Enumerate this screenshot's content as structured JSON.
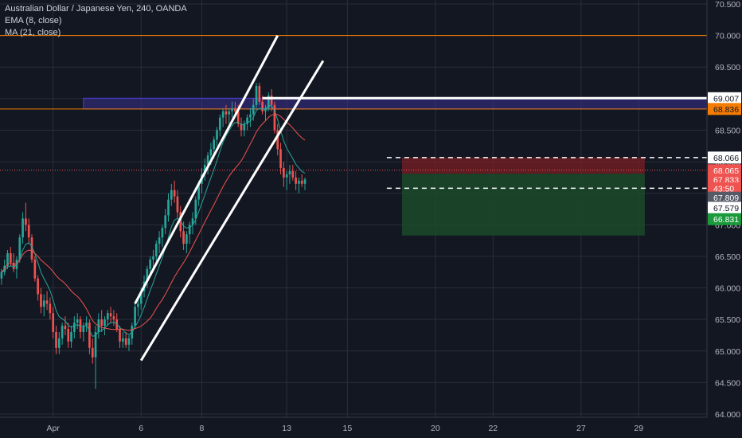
{
  "legend": {
    "title": "Australian Dollar / Japanese Yen, 240, OANDA",
    "ema": "EMA (8, close)",
    "ma": "MA (21, close)"
  },
  "colors": {
    "background": "#131722",
    "grid": "#2a2e39",
    "up": "#26a69a",
    "down": "#ef5350",
    "ema": "#26a69a",
    "ma": "#ef5350",
    "level_line": "#f57c00",
    "zone_fill": "#3b2f8f",
    "zone_border": "#4a3fd6",
    "trend_line": "#ffffff",
    "stop_zone": "#7a1f23",
    "target_zone": "#1c4a2a",
    "label_white": "#ffffff",
    "label_red": "#ef5350",
    "label_grey": "#555a66",
    "label_green": "#1b9a3c",
    "label_orange": "#f57c00"
  },
  "chart_data": {
    "type": "candlestick",
    "symbol": "Australian Dollar / Japanese Yen",
    "interval": "240",
    "source": "OANDA",
    "y_axis": {
      "ticks": [
        "70.500",
        "70.000",
        "69.500",
        "69.000",
        "68.500",
        "68.000",
        "67.500",
        "67.000",
        "66.500",
        "66.000",
        "65.500",
        "65.000",
        "64.500",
        "64.000"
      ],
      "range": [
        63.95,
        70.55
      ]
    },
    "x_axis": {
      "ticks": [
        {
          "label": "Apr",
          "index": 17
        },
        {
          "label": "6",
          "index": 46
        },
        {
          "label": "8",
          "index": 66
        },
        {
          "label": "13",
          "index": 94
        },
        {
          "label": "15",
          "index": 114
        },
        {
          "label": "20",
          "index": 143
        },
        {
          "label": "22",
          "index": 162
        },
        {
          "label": "27",
          "index": 191
        },
        {
          "label": "29",
          "index": 210
        }
      ],
      "bar_count_visible": 233
    },
    "candles": [
      [
        66.15,
        66.3,
        66.05,
        66.25
      ],
      [
        66.25,
        66.45,
        66.2,
        66.35
      ],
      [
        66.35,
        66.6,
        66.3,
        66.55
      ],
      [
        66.55,
        66.65,
        66.35,
        66.4
      ],
      [
        66.4,
        66.55,
        66.25,
        66.3
      ],
      [
        66.3,
        66.5,
        66.15,
        66.45
      ],
      [
        66.45,
        66.85,
        66.4,
        66.8
      ],
      [
        66.8,
        67.2,
        66.7,
        67.1
      ],
      [
        67.1,
        67.35,
        66.9,
        67.0
      ],
      [
        67.0,
        67.1,
        66.7,
        66.8
      ],
      [
        66.8,
        66.85,
        66.4,
        66.45
      ],
      [
        66.45,
        66.5,
        66.1,
        66.15
      ],
      [
        66.15,
        66.2,
        65.8,
        65.9
      ],
      [
        65.9,
        66.0,
        65.6,
        65.7
      ],
      [
        65.7,
        65.9,
        65.55,
        65.8
      ],
      [
        65.8,
        65.95,
        65.65,
        65.75
      ],
      [
        65.75,
        65.85,
        65.5,
        65.6
      ],
      [
        65.6,
        65.7,
        65.2,
        65.3
      ],
      [
        65.3,
        65.4,
        64.95,
        65.05
      ],
      [
        65.05,
        65.3,
        64.95,
        65.2
      ],
      [
        65.2,
        65.45,
        65.1,
        65.4
      ],
      [
        65.4,
        65.55,
        65.25,
        65.35
      ],
      [
        65.35,
        65.45,
        65.05,
        65.15
      ],
      [
        65.15,
        65.4,
        65.05,
        65.3
      ],
      [
        65.3,
        65.55,
        65.2,
        65.45
      ],
      [
        65.45,
        65.6,
        65.35,
        65.5
      ],
      [
        65.5,
        65.55,
        65.2,
        65.3
      ],
      [
        65.3,
        65.45,
        65.15,
        65.4
      ],
      [
        65.4,
        65.55,
        65.3,
        65.45
      ],
      [
        65.45,
        65.5,
        64.95,
        65.05
      ],
      [
        65.05,
        65.2,
        64.8,
        64.9
      ],
      [
        64.9,
        65.4,
        64.4,
        65.3
      ],
      [
        65.3,
        65.6,
        65.2,
        65.5
      ],
      [
        65.5,
        65.65,
        65.3,
        65.4
      ],
      [
        65.4,
        65.55,
        65.25,
        65.5
      ],
      [
        65.5,
        65.65,
        65.4,
        65.6
      ],
      [
        65.6,
        65.7,
        65.45,
        65.55
      ],
      [
        65.55,
        65.65,
        65.4,
        65.5
      ],
      [
        65.5,
        65.6,
        65.3,
        65.35
      ],
      [
        65.35,
        65.4,
        65.05,
        65.15
      ],
      [
        65.15,
        65.3,
        65.05,
        65.2
      ],
      [
        65.2,
        65.3,
        65.05,
        65.1
      ],
      [
        65.1,
        65.25,
        65.0,
        65.2
      ],
      [
        65.2,
        65.45,
        65.1,
        65.4
      ],
      [
        65.4,
        65.75,
        65.35,
        65.7
      ],
      [
        65.7,
        65.85,
        65.55,
        65.75
      ],
      [
        65.75,
        66.0,
        65.65,
        65.95
      ],
      [
        65.95,
        66.2,
        65.85,
        66.1
      ],
      [
        66.1,
        66.35,
        66.0,
        66.3
      ],
      [
        66.3,
        66.5,
        66.2,
        66.45
      ],
      [
        66.45,
        66.6,
        66.3,
        66.5
      ],
      [
        66.5,
        66.75,
        66.4,
        66.7
      ],
      [
        66.7,
        66.9,
        66.55,
        66.8
      ],
      [
        66.8,
        67.0,
        66.65,
        66.95
      ],
      [
        66.95,
        67.25,
        66.85,
        67.15
      ],
      [
        67.15,
        67.5,
        67.05,
        67.4
      ],
      [
        67.4,
        67.65,
        67.3,
        67.55
      ],
      [
        67.55,
        67.7,
        67.35,
        67.45
      ],
      [
        67.45,
        67.55,
        67.1,
        67.2
      ],
      [
        67.2,
        67.3,
        66.8,
        66.9
      ],
      [
        66.9,
        67.05,
        66.6,
        66.7
      ],
      [
        66.7,
        66.9,
        66.55,
        66.85
      ],
      [
        66.85,
        67.05,
        66.7,
        67.0
      ],
      [
        67.0,
        67.2,
        66.85,
        67.1
      ],
      [
        67.1,
        67.45,
        67.0,
        67.4
      ],
      [
        67.4,
        67.7,
        67.3,
        67.65
      ],
      [
        67.65,
        67.9,
        67.5,
        67.8
      ],
      [
        67.8,
        68.05,
        67.7,
        67.95
      ],
      [
        67.95,
        68.15,
        67.8,
        68.1
      ],
      [
        68.1,
        68.3,
        67.95,
        68.2
      ],
      [
        68.2,
        68.4,
        68.05,
        68.35
      ],
      [
        68.35,
        68.55,
        68.25,
        68.5
      ],
      [
        68.5,
        68.75,
        68.4,
        68.7
      ],
      [
        68.7,
        68.85,
        68.55,
        68.8
      ],
      [
        68.8,
        68.9,
        68.6,
        68.75
      ],
      [
        68.75,
        68.85,
        68.6,
        68.8
      ],
      [
        68.8,
        68.95,
        68.7,
        68.85
      ],
      [
        68.85,
        68.95,
        68.7,
        68.8
      ],
      [
        68.8,
        68.9,
        68.55,
        68.6
      ],
      [
        68.6,
        68.7,
        68.4,
        68.5
      ],
      [
        68.5,
        68.65,
        68.4,
        68.6
      ],
      [
        68.6,
        68.75,
        68.5,
        68.7
      ],
      [
        68.7,
        68.85,
        68.55,
        68.75
      ],
      [
        68.75,
        69.0,
        68.65,
        68.9
      ],
      [
        68.9,
        69.25,
        68.85,
        69.2
      ],
      [
        69.2,
        69.25,
        68.9,
        68.95
      ],
      [
        68.95,
        69.05,
        68.75,
        68.8
      ],
      [
        68.8,
        68.9,
        68.65,
        68.85
      ],
      [
        68.85,
        69.1,
        68.8,
        69.05
      ],
      [
        69.05,
        69.15,
        68.8,
        68.9
      ],
      [
        68.9,
        68.95,
        68.45,
        68.5
      ],
      [
        68.5,
        68.6,
        68.1,
        68.2
      ],
      [
        68.2,
        68.3,
        67.8,
        67.9
      ],
      [
        67.9,
        68.0,
        67.6,
        67.75
      ],
      [
        67.75,
        67.85,
        67.55,
        67.8
      ],
      [
        67.8,
        67.95,
        67.65,
        67.85
      ],
      [
        67.85,
        67.95,
        67.7,
        67.75
      ],
      [
        67.75,
        67.85,
        67.55,
        67.65
      ],
      [
        67.65,
        67.75,
        67.5,
        67.7
      ],
      [
        67.7,
        67.8,
        67.6,
        67.65
      ],
      [
        67.65,
        67.75,
        67.55,
        67.72
      ]
    ],
    "indicators": [
      {
        "name": "EMA (8, close)",
        "color": "#26a69a"
      },
      {
        "name": "MA (21, close)",
        "color": "#ef5350"
      }
    ],
    "levels": [
      {
        "price": 70.0,
        "label": "70.000"
      },
      {
        "price": 68.836,
        "label": "68.836"
      }
    ],
    "supply_zone": {
      "from": 68.836,
      "to": 69.007
    },
    "horizontal_rays": [
      {
        "price": 69.007,
        "label": "69.007",
        "style": "solid"
      },
      {
        "price": 68.066,
        "label": "68.066",
        "style": "dashed"
      },
      {
        "price": 67.579,
        "label": "67.579",
        "style": "dashed"
      }
    ],
    "channel_lines": [
      {
        "start": {
          "index": 44,
          "price": 65.75
        },
        "end": {
          "index": 91,
          "price": 70.0
        }
      },
      {
        "start": {
          "index": 46,
          "price": 64.85
        },
        "end": {
          "index": 106,
          "price": 69.6
        }
      }
    ],
    "position": {
      "entry": 67.809,
      "stop": 68.066,
      "target": 66.831,
      "from_index": 132,
      "to_index": 212
    },
    "price_labels": [
      {
        "price": 69.007,
        "text": "69.007",
        "style": "white"
      },
      {
        "price": 68.836,
        "text": "68.836",
        "style": "orange"
      },
      {
        "price": 68.066,
        "text": "68.066",
        "style": "white"
      },
      {
        "price": 67.865,
        "text": "68.065",
        "style": "red"
      },
      {
        "price": 67.72,
        "text": "67.833",
        "style": "red"
      },
      {
        "price": 67.58,
        "text": "43:50",
        "style": "red"
      },
      {
        "price": 67.43,
        "text": "67.809",
        "style": "grey"
      },
      {
        "price": 67.27,
        "text": "67.579",
        "style": "white"
      },
      {
        "price": 67.09,
        "text": "66.831",
        "style": "green"
      }
    ],
    "current_price": 67.865
  }
}
